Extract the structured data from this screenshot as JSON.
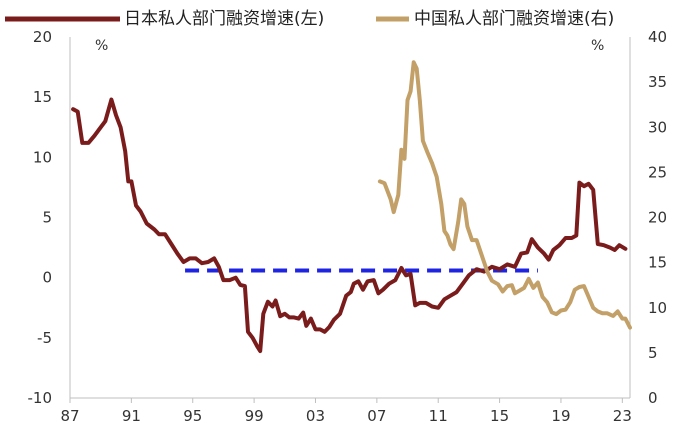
{
  "chart_data": {
    "type": "line",
    "legend": {
      "placement": "top",
      "items": [
        {
          "label": "日本私人部门融资增速(左)",
          "color": "#7b1c1c"
        },
        {
          "label": "中国私人部门融资增速(右)",
          "color": "#c2a068"
        }
      ]
    },
    "left_axis": {
      "unit": "%",
      "ylim": [
        -10,
        20
      ],
      "ticks": [
        "20",
        "15",
        "10",
        "5",
        "0",
        "-5",
        "-10"
      ],
      "tick_values": [
        20,
        15,
        10,
        5,
        0,
        -5,
        -10
      ]
    },
    "right_axis": {
      "unit": "%",
      "ylim": [
        0,
        40
      ],
      "ticks": [
        "40",
        "35",
        "30",
        "25",
        "20",
        "15",
        "10",
        "5",
        "0"
      ],
      "tick_values": [
        40,
        35,
        30,
        25,
        20,
        15,
        10,
        5,
        0
      ]
    },
    "x_axis": {
      "xlim": [
        1987,
        2023.5
      ],
      "ticks": [
        "87",
        "91",
        "95",
        "99",
        "03",
        "07",
        "11",
        "15",
        "19",
        "23"
      ],
      "tick_values": [
        1987,
        1991,
        1995,
        1999,
        2003,
        2007,
        2011,
        2015,
        2019,
        2023
      ]
    },
    "series": [
      {
        "name": "日本私人部门融资增速(左)",
        "axis": "left",
        "color": "#7b1c1c",
        "points": [
          [
            1987.2,
            14.0
          ],
          [
            1987.5,
            13.8
          ],
          [
            1987.8,
            11.2
          ],
          [
            1988.2,
            11.2
          ],
          [
            1988.6,
            11.8
          ],
          [
            1989.0,
            12.5
          ],
          [
            1989.3,
            13.0
          ],
          [
            1989.7,
            14.8
          ],
          [
            1990.0,
            13.5
          ],
          [
            1990.3,
            12.5
          ],
          [
            1990.6,
            10.5
          ],
          [
            1990.8,
            8.0
          ],
          [
            1991.0,
            8.0
          ],
          [
            1991.3,
            6.0
          ],
          [
            1991.6,
            5.5
          ],
          [
            1992.0,
            4.5
          ],
          [
            1992.5,
            4.0
          ],
          [
            1992.8,
            3.6
          ],
          [
            1993.2,
            3.6
          ],
          [
            1993.6,
            2.8
          ],
          [
            1994.0,
            2.0
          ],
          [
            1994.4,
            1.3
          ],
          [
            1994.8,
            1.6
          ],
          [
            1995.2,
            1.6
          ],
          [
            1995.6,
            1.2
          ],
          [
            1996.0,
            1.3
          ],
          [
            1996.4,
            1.6
          ],
          [
            1996.7,
            0.9
          ],
          [
            1997.0,
            -0.2
          ],
          [
            1997.4,
            -0.2
          ],
          [
            1997.8,
            0.0
          ],
          [
            1998.1,
            -0.6
          ],
          [
            1998.4,
            -0.7
          ],
          [
            1998.6,
            -4.5
          ],
          [
            1998.9,
            -5.0
          ],
          [
            1999.2,
            -5.7
          ],
          [
            1999.4,
            -6.1
          ],
          [
            1999.6,
            -3.0
          ],
          [
            1999.9,
            -2.0
          ],
          [
            2000.2,
            -2.4
          ],
          [
            2000.4,
            -1.9
          ],
          [
            2000.7,
            -3.2
          ],
          [
            2001.0,
            -3.0
          ],
          [
            2001.3,
            -3.3
          ],
          [
            2001.6,
            -3.3
          ],
          [
            2001.9,
            -3.4
          ],
          [
            2002.2,
            -2.9
          ],
          [
            2002.4,
            -4.0
          ],
          [
            2002.7,
            -3.4
          ],
          [
            2003.0,
            -4.3
          ],
          [
            2003.3,
            -4.3
          ],
          [
            2003.6,
            -4.5
          ],
          [
            2003.9,
            -4.1
          ],
          [
            2004.2,
            -3.5
          ],
          [
            2004.6,
            -3.0
          ],
          [
            2005.0,
            -1.5
          ],
          [
            2005.3,
            -1.2
          ],
          [
            2005.5,
            -0.5
          ],
          [
            2005.8,
            -0.3
          ],
          [
            2006.1,
            -1.0
          ],
          [
            2006.4,
            -0.3
          ],
          [
            2006.8,
            -0.2
          ],
          [
            2007.1,
            -1.3
          ],
          [
            2007.4,
            -1.0
          ],
          [
            2007.8,
            -0.5
          ],
          [
            2008.2,
            -0.2
          ],
          [
            2008.6,
            0.8
          ],
          [
            2008.9,
            0.2
          ],
          [
            2009.2,
            0.3
          ],
          [
            2009.5,
            -2.3
          ],
          [
            2009.8,
            -2.1
          ],
          [
            2010.2,
            -2.1
          ],
          [
            2010.6,
            -2.4
          ],
          [
            2011.0,
            -2.5
          ],
          [
            2011.4,
            -1.8
          ],
          [
            2011.8,
            -1.5
          ],
          [
            2012.2,
            -1.2
          ],
          [
            2012.6,
            -0.5
          ],
          [
            2013.0,
            0.2
          ],
          [
            2013.5,
            0.7
          ],
          [
            2014.0,
            0.5
          ],
          [
            2014.5,
            0.9
          ],
          [
            2015.0,
            0.7
          ],
          [
            2015.5,
            1.1
          ],
          [
            2016.0,
            0.9
          ],
          [
            2016.4,
            2.0
          ],
          [
            2016.8,
            2.1
          ],
          [
            2017.1,
            3.2
          ],
          [
            2017.5,
            2.5
          ],
          [
            2017.9,
            2.0
          ],
          [
            2018.2,
            1.5
          ],
          [
            2018.5,
            2.3
          ],
          [
            2018.9,
            2.7
          ],
          [
            2019.3,
            3.3
          ],
          [
            2019.7,
            3.3
          ],
          [
            2020.0,
            3.5
          ],
          [
            2020.2,
            7.9
          ],
          [
            2020.5,
            7.6
          ],
          [
            2020.8,
            7.8
          ],
          [
            2021.1,
            7.3
          ],
          [
            2021.4,
            2.8
          ],
          [
            2021.8,
            2.7
          ],
          [
            2022.2,
            2.5
          ],
          [
            2022.5,
            2.3
          ],
          [
            2022.8,
            2.7
          ],
          [
            2023.2,
            2.4
          ]
        ]
      },
      {
        "name": "中国私人部门融资增速(右)",
        "axis": "right",
        "color": "#c2a068",
        "points": [
          [
            2007.2,
            24.0
          ],
          [
            2007.5,
            23.8
          ],
          [
            2007.9,
            22.0
          ],
          [
            2008.1,
            20.6
          ],
          [
            2008.4,
            22.5
          ],
          [
            2008.6,
            27.5
          ],
          [
            2008.8,
            26.5
          ],
          [
            2009.0,
            33.0
          ],
          [
            2009.2,
            34.0
          ],
          [
            2009.4,
            37.2
          ],
          [
            2009.6,
            36.5
          ],
          [
            2009.8,
            33.0
          ],
          [
            2010.0,
            28.5
          ],
          [
            2010.3,
            27.2
          ],
          [
            2010.6,
            26.0
          ],
          [
            2010.9,
            24.5
          ],
          [
            2011.2,
            21.5
          ],
          [
            2011.4,
            18.5
          ],
          [
            2011.6,
            18.0
          ],
          [
            2011.8,
            17.0
          ],
          [
            2012.0,
            16.5
          ],
          [
            2012.3,
            19.5
          ],
          [
            2012.5,
            22.0
          ],
          [
            2012.7,
            21.5
          ],
          [
            2012.9,
            19.0
          ],
          [
            2013.2,
            17.5
          ],
          [
            2013.5,
            17.5
          ],
          [
            2013.9,
            15.5
          ],
          [
            2014.2,
            14.0
          ],
          [
            2014.5,
            13.0
          ],
          [
            2014.9,
            12.6
          ],
          [
            2015.2,
            11.8
          ],
          [
            2015.5,
            12.4
          ],
          [
            2015.8,
            12.5
          ],
          [
            2016.0,
            11.6
          ],
          [
            2016.3,
            11.9
          ],
          [
            2016.6,
            12.2
          ],
          [
            2016.9,
            13.2
          ],
          [
            2017.2,
            12.2
          ],
          [
            2017.5,
            12.8
          ],
          [
            2017.8,
            11.2
          ],
          [
            2018.1,
            10.6
          ],
          [
            2018.4,
            9.5
          ],
          [
            2018.7,
            9.3
          ],
          [
            2019.0,
            9.7
          ],
          [
            2019.3,
            9.8
          ],
          [
            2019.6,
            10.6
          ],
          [
            2019.9,
            12.0
          ],
          [
            2020.2,
            12.3
          ],
          [
            2020.5,
            12.4
          ],
          [
            2020.8,
            11.2
          ],
          [
            2021.1,
            10.0
          ],
          [
            2021.4,
            9.6
          ],
          [
            2021.7,
            9.4
          ],
          [
            2022.0,
            9.4
          ],
          [
            2022.4,
            9.1
          ],
          [
            2022.7,
            9.6
          ],
          [
            2023.0,
            8.8
          ],
          [
            2023.2,
            8.8
          ],
          [
            2023.5,
            7.8
          ]
        ]
      }
    ],
    "reference_line": {
      "axis": "left",
      "y": 0.6,
      "x_start": 1994.5,
      "x_end": 2017.5,
      "color": "#1f24e0",
      "style": "dashed"
    }
  }
}
